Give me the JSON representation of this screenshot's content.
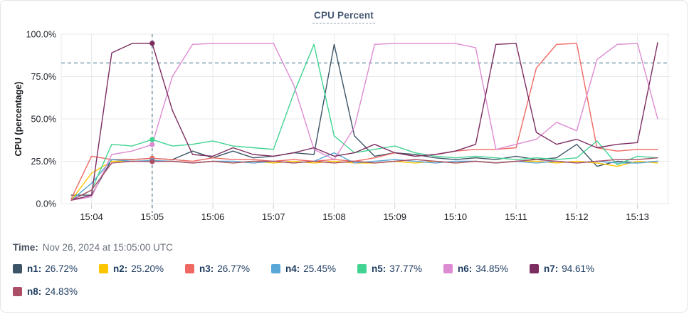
{
  "time_row": {
    "label": "Time:",
    "value": "Nov 26, 2024 at 15:05:00 UTC"
  },
  "legend": {
    "items": [
      {
        "label": "n1:",
        "value": "26.72%"
      },
      {
        "label": "n2:",
        "value": "25.20%"
      },
      {
        "label": "n3:",
        "value": "26.77%"
      },
      {
        "label": "n4:",
        "value": "25.45%"
      },
      {
        "label": "n5:",
        "value": "37.77%"
      },
      {
        "label": "n6:",
        "value": "34.85%"
      },
      {
        "label": "n7:",
        "value": "94.61%"
      },
      {
        "label": "n8:",
        "value": "24.83%"
      }
    ]
  },
  "chart_data": {
    "type": "line",
    "title": "CPU Percent",
    "xlabel": "",
    "ylabel": "CPU (percentage)",
    "ylim": [
      0,
      100
    ],
    "y_ticks": [
      "0.0%",
      "25.0%",
      "50.0%",
      "75.0%",
      "100.0%"
    ],
    "y_tick_values": [
      0,
      25,
      50,
      75,
      100
    ],
    "x_tick_labels": [
      "15:04",
      "15:05",
      "15:06",
      "15:07",
      "15:08",
      "15:09",
      "15:10",
      "15:11",
      "15:12",
      "15:13"
    ],
    "x_tick_seconds": [
      240,
      300,
      360,
      420,
      480,
      540,
      600,
      660,
      720,
      780
    ],
    "x_grid_seconds": [
      210,
      240,
      300,
      360,
      420,
      480,
      540,
      600,
      660,
      720,
      780,
      810
    ],
    "x_domain_seconds": [
      210,
      812
    ],
    "grid": true,
    "threshold_percent": 83,
    "crosshair_second": 300,
    "crosshair_time": "15:05:00",
    "x_seconds": [
      220,
      240,
      260,
      280,
      300,
      320,
      340,
      360,
      380,
      400,
      420,
      440,
      460,
      480,
      500,
      520,
      540,
      560,
      580,
      600,
      620,
      640,
      660,
      680,
      700,
      720,
      740,
      760,
      780,
      800
    ],
    "series": [
      {
        "name": "n1",
        "color": "#3d5467",
        "values": [
          5,
          5,
          26,
          26,
          26.72,
          26,
          31,
          27,
          31,
          27,
          28,
          30,
          29,
          94,
          40,
          28,
          30,
          29,
          27,
          26,
          27,
          26,
          28,
          26,
          27,
          35,
          22,
          25,
          24,
          25
        ]
      },
      {
        "name": "n2",
        "color": "#fdc500",
        "values": [
          2,
          18,
          25,
          25,
          25.2,
          25,
          24,
          25,
          24,
          25,
          24,
          25,
          24,
          25,
          24,
          24,
          25,
          24,
          25,
          24,
          25,
          24,
          25,
          25,
          24,
          25,
          24,
          22,
          25,
          24
        ]
      },
      {
        "name": "n3",
        "color": "#ef6962",
        "values": [
          3,
          28,
          26,
          26,
          26.77,
          26,
          25,
          27,
          26,
          26,
          25,
          26,
          25,
          26,
          25,
          27,
          30,
          28,
          29,
          31,
          32,
          32,
          33,
          80,
          94,
          94.5,
          33,
          31,
          32,
          32
        ]
      },
      {
        "name": "n4",
        "color": "#58a6d6",
        "values": [
          2,
          12,
          26,
          25,
          25.45,
          25,
          24,
          25,
          25,
          24,
          25,
          24,
          25,
          30,
          24,
          25,
          26,
          25,
          24,
          25,
          25,
          24,
          25,
          24,
          25,
          24,
          25,
          24,
          24,
          25
        ]
      },
      {
        "name": "n5",
        "color": "#42d392",
        "values": [
          2,
          8,
          35,
          34,
          37.77,
          34,
          35,
          37,
          34,
          33,
          32,
          65,
          94,
          40,
          30,
          32,
          34,
          30,
          28,
          27,
          28,
          27,
          26,
          27,
          26,
          27,
          37,
          23,
          28,
          27
        ]
      },
      {
        "name": "n6",
        "color": "#dd8bd2",
        "values": [
          2,
          4,
          29,
          31,
          34.85,
          75,
          94,
          94.5,
          94.5,
          94.5,
          94.5,
          70,
          32,
          26,
          45,
          94,
          94.5,
          94.5,
          94.5,
          94.5,
          92,
          32,
          35,
          38,
          48,
          43,
          85,
          94,
          94.5,
          50
        ]
      },
      {
        "name": "n7",
        "color": "#7c2d60",
        "values": [
          2,
          5,
          89,
          94.5,
          94.61,
          55,
          29,
          28,
          33,
          29,
          28,
          30,
          33,
          28,
          30,
          35,
          30,
          28,
          29,
          31,
          35,
          94,
          94.5,
          42,
          35,
          38,
          33,
          35,
          36,
          95
        ]
      },
      {
        "name": "n8",
        "color": "#aa4f66",
        "values": [
          2,
          8,
          24,
          25,
          24.83,
          25,
          24,
          25,
          24,
          25,
          25,
          24,
          25,
          24,
          25,
          24,
          25,
          26,
          25,
          24,
          25,
          24,
          25,
          26,
          25,
          24,
          25,
          26,
          26,
          27
        ]
      }
    ],
    "values_at_crosshair": {
      "n1": 26.72,
      "n2": 25.2,
      "n3": 26.77,
      "n4": 25.45,
      "n5": 37.77,
      "n6": 34.85,
      "n7": 94.61,
      "n8": 24.83
    }
  }
}
